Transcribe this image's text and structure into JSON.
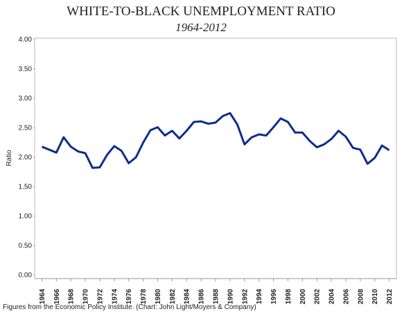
{
  "chart_data": {
    "type": "line",
    "title": "WHITE-TO-BLACK UNEMPLOYMENT RATIO",
    "subtitle": "1964-2012",
    "y_label": "Ratio",
    "footnote": "Figures from the Economic Policy Institute. (Chart: John Light/Moyers & Company)",
    "x": [
      1964,
      1965,
      1966,
      1967,
      1968,
      1969,
      1970,
      1971,
      1972,
      1973,
      1974,
      1975,
      1976,
      1977,
      1978,
      1979,
      1980,
      1981,
      1982,
      1983,
      1984,
      1985,
      1986,
      1987,
      1988,
      1989,
      1990,
      1991,
      1992,
      1993,
      1994,
      1995,
      1996,
      1997,
      1998,
      1999,
      2000,
      2001,
      2002,
      2003,
      2004,
      2005,
      2006,
      2007,
      2008,
      2009,
      2010,
      2011,
      2012
    ],
    "series": [
      {
        "name": "Ratio",
        "color": "#0d2c8c",
        "values": [
          2.18,
          2.13,
          2.08,
          2.34,
          2.18,
          2.1,
          2.07,
          1.82,
          1.83,
          2.04,
          2.19,
          2.11,
          1.9,
          2.0,
          2.25,
          2.46,
          2.51,
          2.37,
          2.45,
          2.32,
          2.45,
          2.6,
          2.61,
          2.57,
          2.59,
          2.7,
          2.75,
          2.56,
          2.22,
          2.34,
          2.39,
          2.37,
          2.51,
          2.66,
          2.6,
          2.42,
          2.42,
          2.28,
          2.17,
          2.22,
          2.31,
          2.45,
          2.35,
          2.16,
          2.13,
          1.89,
          1.99,
          2.2,
          2.12
        ]
      }
    ],
    "xlim": [
      1963,
      2013
    ],
    "xticks": [
      1964,
      1966,
      1968,
      1970,
      1972,
      1974,
      1976,
      1978,
      1980,
      1982,
      1984,
      1986,
      1988,
      1990,
      1992,
      1994,
      1996,
      1998,
      2000,
      2002,
      2004,
      2006,
      2008,
      2010,
      2012
    ],
    "ylim": [
      0,
      4
    ],
    "yticks": [
      {
        "value": 0,
        "label": "0.00"
      },
      {
        "value": 0.5,
        "label": "0.50"
      },
      {
        "value": 1,
        "label": "1.00"
      },
      {
        "value": 1.5,
        "label": "1.50"
      },
      {
        "value": 2,
        "label": "2.00"
      },
      {
        "value": 2.5,
        "label": "2.50"
      },
      {
        "value": 3,
        "label": "3.00"
      },
      {
        "value": 3.5,
        "label": "3.50"
      },
      {
        "value": 4,
        "label": "4.00"
      }
    ],
    "grid": false
  }
}
